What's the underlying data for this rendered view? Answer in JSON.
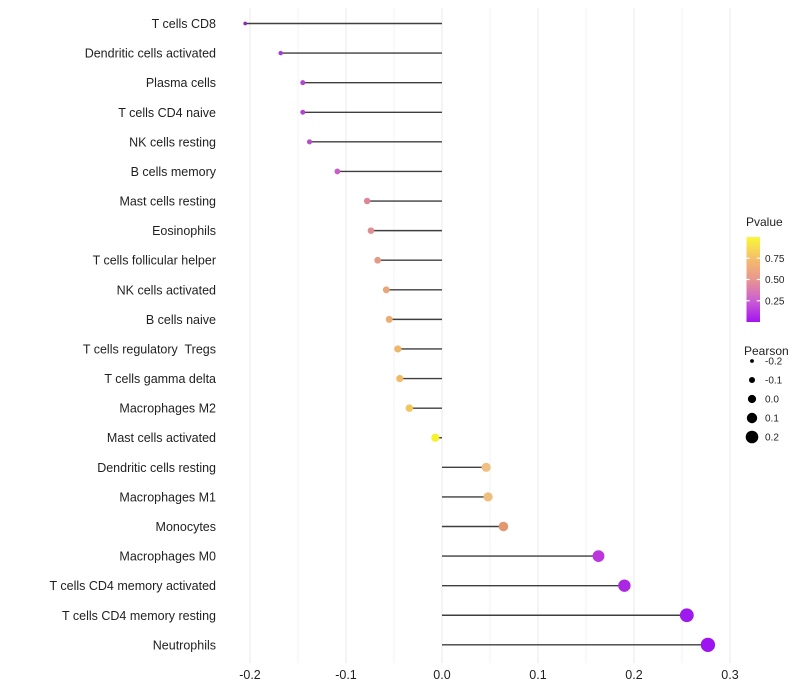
{
  "chart_data": {
    "type": "lollipop",
    "title": "",
    "xlabel": "",
    "ylabel": "",
    "x_axis": {
      "major_ticks": [
        -0.2,
        -0.1,
        0.0,
        0.1,
        0.2,
        0.3
      ],
      "major_tick_labels": [
        "-0.2",
        "-0.1",
        "0.0",
        "0.1",
        "0.2",
        "0.3"
      ],
      "minor_ticks": [
        -0.15,
        -0.05,
        0.05,
        0.15,
        0.25
      ],
      "range": [
        -0.229,
        0.301
      ],
      "grid": true
    },
    "baseline_x": 0.0,
    "rows": [
      {
        "label": "T cells CD8",
        "pearson": -0.205,
        "pvalue": 0.06,
        "color": "#8F2BB5"
      },
      {
        "label": "Dendritic cells activated",
        "pearson": -0.168,
        "pvalue": 0.13,
        "color": "#A93BD4"
      },
      {
        "label": "Plasma cells",
        "pearson": -0.145,
        "pvalue": 0.17,
        "color": "#B246CE"
      },
      {
        "label": "T cells CD4 naive",
        "pearson": -0.145,
        "pvalue": 0.17,
        "color": "#B246CE"
      },
      {
        "label": "NK cells resting",
        "pearson": -0.138,
        "pvalue": 0.19,
        "color": "#B84ECB"
      },
      {
        "label": "B cells memory",
        "pearson": -0.109,
        "pvalue": 0.26,
        "color": "#C75FC5"
      },
      {
        "label": "Mast cells resting",
        "pearson": -0.078,
        "pvalue": 0.42,
        "color": "#DB8797"
      },
      {
        "label": "Eosinophils",
        "pearson": -0.074,
        "pvalue": 0.44,
        "color": "#DE8D92"
      },
      {
        "label": "T cells follicular helper",
        "pearson": -0.067,
        "pvalue": 0.5,
        "color": "#E39A85"
      },
      {
        "label": "NK cells activated",
        "pearson": -0.058,
        "pvalue": 0.55,
        "color": "#E9A57B"
      },
      {
        "label": "B cells naive",
        "pearson": -0.055,
        "pvalue": 0.58,
        "color": "#ECAD73"
      },
      {
        "label": "T cells regulatory  Tregs",
        "pearson": -0.046,
        "pvalue": 0.62,
        "color": "#EFB76A"
      },
      {
        "label": "T cells gamma delta",
        "pearson": -0.044,
        "pvalue": 0.64,
        "color": "#F0BA66"
      },
      {
        "label": "Macrophages M2",
        "pearson": -0.034,
        "pvalue": 0.7,
        "color": "#F3C55C"
      },
      {
        "label": "Mast cells activated",
        "pearson": -0.007,
        "pvalue": 0.97,
        "color": "#F6F225"
      },
      {
        "label": "Dendritic cells resting",
        "pearson": 0.046,
        "pvalue": 0.66,
        "color": "#EFC083"
      },
      {
        "label": "Macrophages M1",
        "pearson": 0.048,
        "pvalue": 0.65,
        "color": "#EFBE7E"
      },
      {
        "label": "Monocytes",
        "pearson": 0.064,
        "pvalue": 0.47,
        "color": "#E2976F"
      },
      {
        "label": "Macrophages M0",
        "pearson": 0.163,
        "pvalue": 0.16,
        "color": "#BC35DC"
      },
      {
        "label": "T cells CD4 memory activated",
        "pearson": 0.19,
        "pvalue": 0.1,
        "color": "#AB28E2"
      },
      {
        "label": "T cells CD4 memory resting",
        "pearson": 0.255,
        "pvalue": 0.05,
        "color": "#9E19EE"
      },
      {
        "label": "Neutrophils",
        "pearson": 0.277,
        "pvalue": 0.04,
        "color": "#9D14F0"
      }
    ],
    "legends": {
      "pvalue": {
        "title": "Pvalue",
        "tick_labels": [
          "0.75",
          "0.50",
          "0.25"
        ],
        "tick_values": [
          0.75,
          0.5,
          0.25
        ],
        "range": [
          1.0,
          0.0
        ],
        "gradient_top_to_bottom": [
          "#F9F838",
          "#F4BE6B",
          "#E9968F",
          "#CB5ED2",
          "#A313F2"
        ]
      },
      "pearson": {
        "title": "Pearson",
        "items": [
          {
            "label": "-0.2",
            "value": -0.2
          },
          {
            "label": "-0.1",
            "value": -0.1
          },
          {
            "label": "0.0",
            "value": 0.0
          },
          {
            "label": "0.1",
            "value": 0.1
          },
          {
            "label": "0.2",
            "value": 0.2
          }
        ],
        "dot_color": "#000000"
      }
    },
    "styles": {
      "segment_color": "#3f3f3f",
      "grid_major_color": "#e8e8e8",
      "grid_minor_color": "#f3f3f3",
      "text_color": "#1f1f1f",
      "background": "#ffffff"
    }
  }
}
